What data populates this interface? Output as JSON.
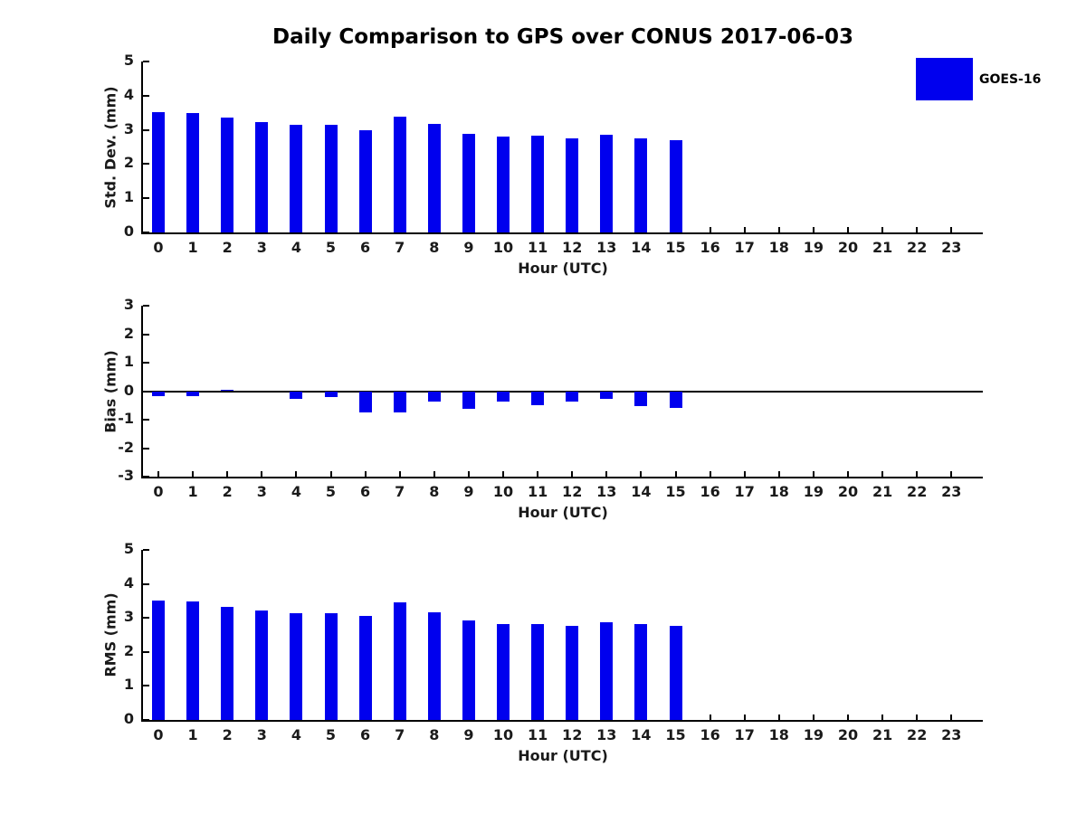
{
  "title": "Daily Comparison to GPS over CONUS 2017-06-03",
  "legend": {
    "label": "GOES-16",
    "color": "#0000EE"
  },
  "chart_data": [
    {
      "type": "bar",
      "name": "std-dev",
      "ylabel": "Std. Dev. (mm)",
      "xlabel": "Hour (UTC)",
      "ylim": [
        0,
        5
      ],
      "yticks": [
        0,
        1,
        2,
        3,
        4,
        5
      ],
      "categories": [
        0,
        1,
        2,
        3,
        4,
        5,
        6,
        7,
        8,
        9,
        10,
        11,
        12,
        13,
        14,
        15,
        16,
        17,
        18,
        19,
        20,
        21,
        22,
        23
      ],
      "legend_position": "outside-top-right",
      "grid": false,
      "series": [
        {
          "name": "GOES-16",
          "values": [
            3.52,
            3.49,
            3.36,
            3.23,
            3.15,
            3.15,
            3.0,
            3.39,
            3.18,
            2.88,
            2.8,
            2.82,
            2.76,
            2.87,
            2.76,
            2.7,
            null,
            null,
            null,
            null,
            null,
            null,
            null,
            null
          ]
        }
      ]
    },
    {
      "type": "bar",
      "name": "bias",
      "ylabel": "Bias (mm)",
      "xlabel": "Hour (UTC)",
      "ylim": [
        -3,
        3
      ],
      "yticks": [
        -3,
        -2,
        -1,
        0,
        1,
        2,
        3
      ],
      "categories": [
        0,
        1,
        2,
        3,
        4,
        5,
        6,
        7,
        8,
        9,
        10,
        11,
        12,
        13,
        14,
        15,
        16,
        17,
        18,
        19,
        20,
        21,
        22,
        23
      ],
      "grid": false,
      "series": [
        {
          "name": "GOES-16",
          "values": [
            -0.16,
            -0.19,
            0.06,
            0.0,
            -0.28,
            -0.2,
            -0.75,
            -0.75,
            -0.38,
            -0.62,
            -0.35,
            -0.48,
            -0.38,
            -0.28,
            -0.52,
            -0.58,
            null,
            null,
            null,
            null,
            null,
            null,
            null,
            null
          ]
        }
      ]
    },
    {
      "type": "bar",
      "name": "rms",
      "ylabel": "RMS (mm)",
      "xlabel": "Hour (UTC)",
      "ylim": [
        0,
        5
      ],
      "yticks": [
        0,
        1,
        2,
        3,
        4,
        5
      ],
      "categories": [
        0,
        1,
        2,
        3,
        4,
        5,
        6,
        7,
        8,
        9,
        10,
        11,
        12,
        13,
        14,
        15,
        16,
        17,
        18,
        19,
        20,
        21,
        22,
        23
      ],
      "grid": false,
      "series": [
        {
          "name": "GOES-16",
          "values": [
            3.52,
            3.48,
            3.33,
            3.22,
            3.13,
            3.14,
            3.07,
            3.45,
            3.17,
            2.93,
            2.82,
            2.82,
            2.76,
            2.87,
            2.82,
            2.76,
            null,
            null,
            null,
            null,
            null,
            null,
            null,
            null
          ]
        }
      ]
    }
  ]
}
